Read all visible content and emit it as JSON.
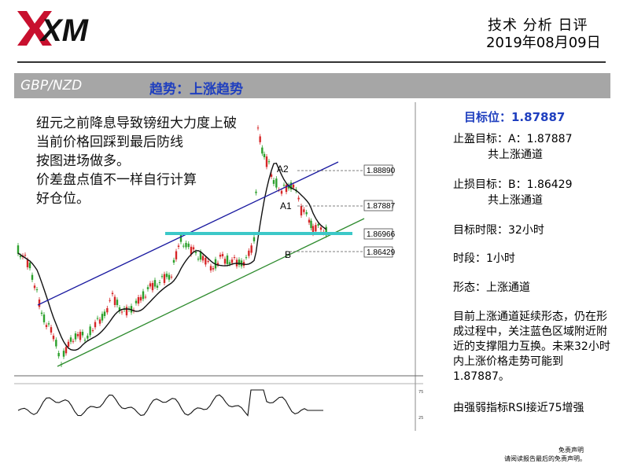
{
  "header": {
    "logo_text": "XM",
    "report_type": "技术 分析 日评",
    "date": "2019年08月09日"
  },
  "bar": {
    "pair": "GBP/NZD",
    "trend": "趋势：上涨趋势"
  },
  "note_lines": [
    "纽元之前降息导致镑纽大力度上破",
    "当前价格回踩到最后防线",
    "按图进场做多。",
    "价差盘点值不一样自行计算",
    "好仓位。"
  ],
  "panel": {
    "target": "目标位：1.87887",
    "tp_line1": "止盈目标：A：1.87887",
    "tp_line2": "共上涨通道",
    "sl_line1": "止损目标：B：1.86429",
    "sl_line2": "共上涨通道",
    "timeframe_limit": "目标时限：32小时",
    "period": "时段：1小时",
    "pattern": "形态：上涨通道",
    "analysis": "目前上涨通道延续形态，仍在形成过程中，关注蓝色区域附近附近的支撑阻力互换。未来32小时内上涨价格走势可能到1.87887。",
    "rsi_note": "由强弱指标RSI接近75增强"
  },
  "disclaimer": {
    "line1": "免责声明",
    "line2": "请阅读报告最后的免责声明。"
  },
  "chart_data": {
    "type": "candlestick",
    "instrument": "GBP/NZD",
    "timeframe": "1小时",
    "annotations": [
      {
        "label": "A2",
        "value": 1.8889
      },
      {
        "label": "A1",
        "value": 1.87887
      },
      {
        "label": "B",
        "value": 1.86429
      },
      {
        "label": "current",
        "value": 1.86966
      }
    ],
    "price_labels": [
      "1.88890",
      "1.87887",
      "1.86966",
      "1.86429"
    ],
    "rsi_levels": [
      75,
      25
    ],
    "colors": {
      "channel_upper": "#1a1aa0",
      "channel_lower": "#2e8b2e",
      "support_zone": "#3cc8c8",
      "bull": "#2ca02c",
      "bear": "#d62728",
      "ma": "#111111"
    }
  }
}
